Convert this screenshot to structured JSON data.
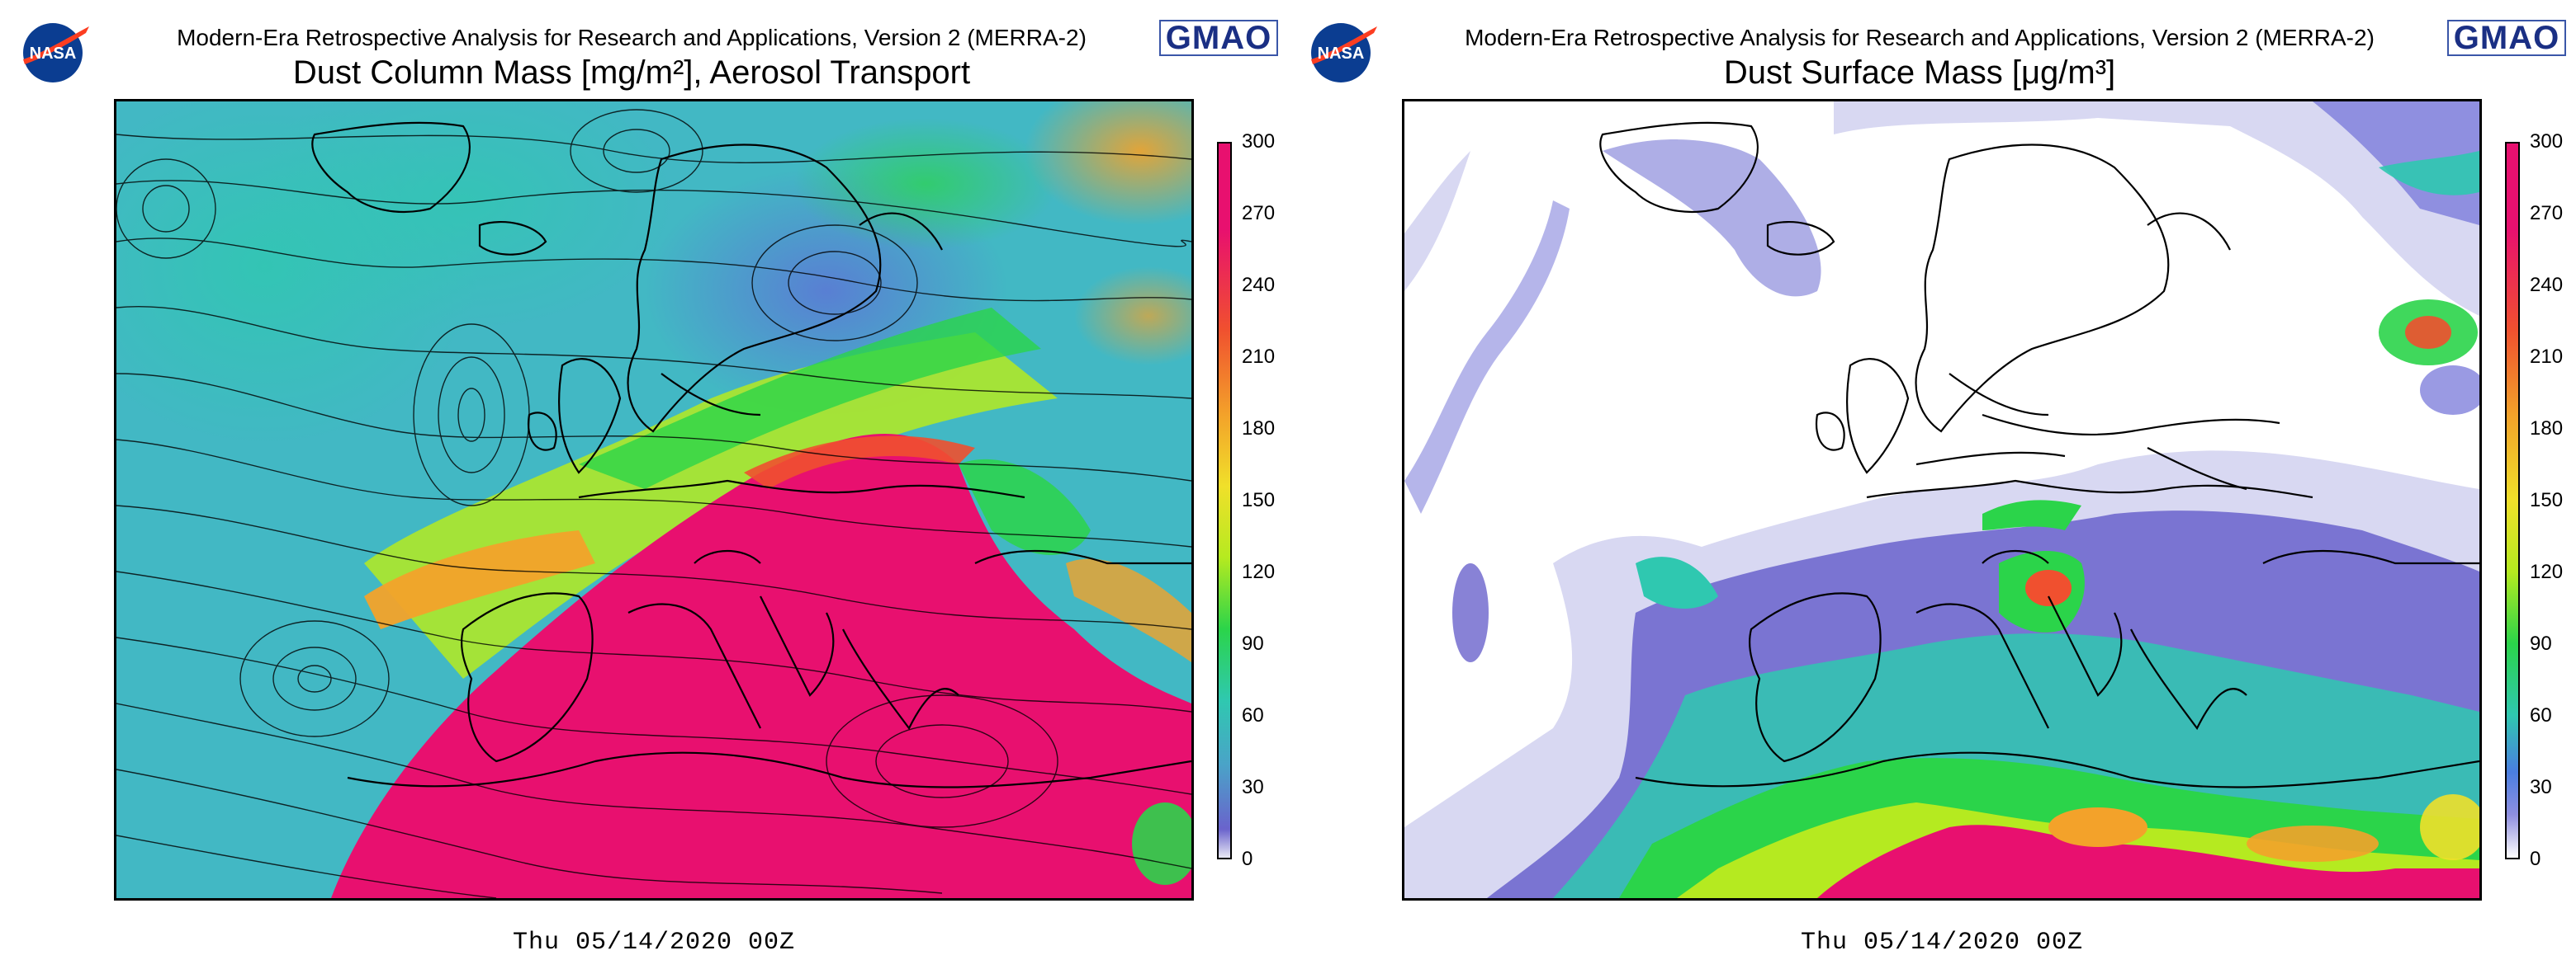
{
  "panels": [
    {
      "subtitle": "Modern-Era Retrospective Analysis for Research and Applications, Version 2 (MERRA-2)",
      "title": "Dust Column Mass [mg/m²], Aerosol Transport",
      "logo_left": "NASA",
      "logo_right": "GMAO",
      "date": "Thu 05/14/2020 00Z",
      "colorbar_ticks": [
        "300",
        "270",
        "240",
        "210",
        "180",
        "150",
        "120",
        "90",
        "60",
        "30",
        "0"
      ],
      "colorscale": [
        "#e8e8f4",
        "#6a63cc",
        "#4aa3c8",
        "#2fc8b0",
        "#2bd44a",
        "#b5ea20",
        "#f0e02a",
        "#f3a22a",
        "#f0502f",
        "#e8106f"
      ]
    },
    {
      "subtitle": "Modern-Era Retrospective Analysis for Research and Applications, Version 2 (MERRA-2)",
      "title": "Dust Surface Mass [μg/m³]",
      "logo_left": "NASA",
      "logo_right": "GMAO",
      "date": "Thu 05/14/2020 00Z",
      "colorbar_ticks": [
        "300",
        "270",
        "240",
        "210",
        "180",
        "150",
        "120",
        "90",
        "60",
        "30",
        "0"
      ],
      "colorscale": [
        "#ffffff",
        "#d8d8f2",
        "#8f8fe0",
        "#4a7ee0",
        "#2fc8b0",
        "#2bd44a",
        "#b5ea20",
        "#f0e02a",
        "#f3a22a",
        "#f0502f",
        "#e8106f"
      ]
    }
  ]
}
